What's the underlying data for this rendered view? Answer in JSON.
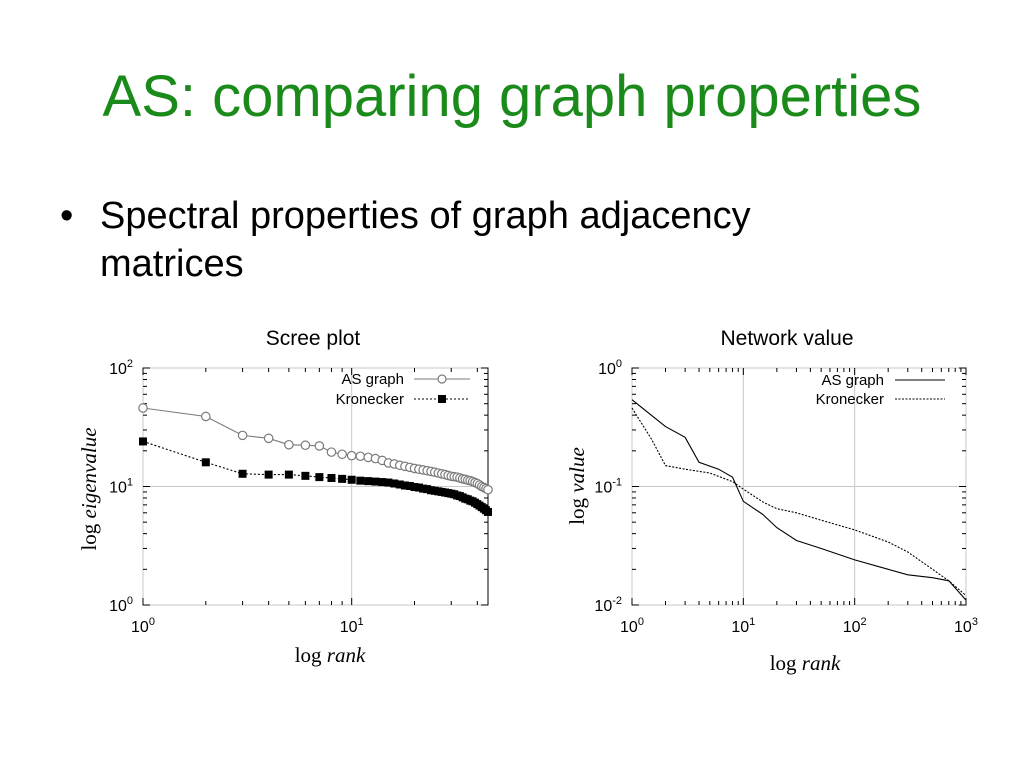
{
  "slide": {
    "title": "AS: comparing graph properties",
    "bullet": "•",
    "bullet_text": "Spectral properties of graph adjacency matrices"
  },
  "chart_data": [
    {
      "type": "line",
      "title": "Scree plot",
      "xlabel_prefix": "log ",
      "xlabel_main": "rank",
      "ylabel_prefix": "log ",
      "ylabel_main": "eigenvalue",
      "xscale": "log",
      "yscale": "log",
      "xlim": [
        1,
        45
      ],
      "ylim": [
        1,
        100
      ],
      "x_ticks": [
        {
          "base": "10",
          "exp": "0"
        },
        {
          "base": "10",
          "exp": "1"
        }
      ],
      "y_ticks": [
        {
          "base": "10",
          "exp": "0"
        },
        {
          "base": "10",
          "exp": "1"
        },
        {
          "base": "10",
          "exp": "2"
        }
      ],
      "legend_position": "top-right",
      "series": [
        {
          "name": "AS graph",
          "color": "#7a7a7a",
          "marker": "open-circle",
          "line": "solid",
          "x": [
            1,
            2,
            3,
            4,
            5,
            6,
            7,
            8,
            9,
            10,
            11,
            12,
            13,
            14,
            15,
            16,
            17,
            18,
            19,
            20,
            21,
            22,
            23,
            24,
            25,
            26,
            27,
            28,
            29,
            30,
            31,
            32,
            33,
            34,
            35,
            36,
            37,
            38,
            39,
            40,
            41,
            42,
            43,
            44,
            45
          ],
          "y": [
            46,
            39,
            27,
            25.5,
            22.5,
            22.3,
            22,
            19.5,
            18.7,
            18.2,
            18,
            17.6,
            17.2,
            16.6,
            15.8,
            15.5,
            15.1,
            14.8,
            14.5,
            14.2,
            14,
            13.8,
            13.6,
            13.4,
            13.2,
            13,
            12.8,
            12.6,
            12.4,
            12.2,
            12.1,
            12,
            11.8,
            11.6,
            11.5,
            11.3,
            11.2,
            11,
            10.8,
            10.6,
            10.3,
            10,
            9.8,
            9.6,
            9.4
          ]
        },
        {
          "name": "Kronecker",
          "color": "#000000",
          "marker": "filled-square",
          "line": "dotted",
          "x": [
            1,
            2,
            3,
            4,
            5,
            6,
            7,
            8,
            9,
            10,
            11,
            12,
            13,
            14,
            15,
            16,
            17,
            18,
            19,
            20,
            21,
            22,
            23,
            24,
            25,
            26,
            27,
            28,
            29,
            30,
            31,
            32,
            33,
            34,
            35,
            36,
            37,
            38,
            39,
            40,
            41,
            42,
            43,
            44,
            45
          ],
          "y": [
            24,
            16,
            12.8,
            12.6,
            12.6,
            12.3,
            12,
            11.8,
            11.6,
            11.4,
            11.2,
            11.1,
            11,
            10.9,
            10.8,
            10.6,
            10.4,
            10.2,
            10.1,
            9.9,
            9.8,
            9.6,
            9.5,
            9.3,
            9.2,
            9.1,
            9,
            8.9,
            8.8,
            8.7,
            8.6,
            8.4,
            8.3,
            8.1,
            7.9,
            7.8,
            7.6,
            7.5,
            7.3,
            7.1,
            6.9,
            6.7,
            6.5,
            6.3,
            6.1
          ]
        }
      ]
    },
    {
      "type": "line",
      "title": "Network value",
      "xlabel_prefix": "log ",
      "xlabel_main": "rank",
      "ylabel_prefix": "log ",
      "ylabel_main": "value",
      "xscale": "log",
      "yscale": "log",
      "xlim": [
        1,
        1000
      ],
      "ylim": [
        0.01,
        1
      ],
      "x_ticks": [
        {
          "base": "10",
          "exp": "0"
        },
        {
          "base": "10",
          "exp": "1"
        },
        {
          "base": "10",
          "exp": "2"
        },
        {
          "base": "10",
          "exp": "3"
        }
      ],
      "y_ticks": [
        {
          "base": "10",
          "exp": "-2"
        },
        {
          "base": "10",
          "exp": "-1"
        },
        {
          "base": "10",
          "exp": "0"
        }
      ],
      "legend_position": "top-right",
      "series": [
        {
          "name": "AS graph",
          "color": "#000000",
          "line": "solid",
          "x": [
            1,
            2,
            3,
            4,
            6,
            8,
            10,
            15,
            20,
            30,
            50,
            100,
            200,
            300,
            500,
            700,
            1000
          ],
          "y": [
            0.54,
            0.32,
            0.26,
            0.16,
            0.14,
            0.12,
            0.075,
            0.058,
            0.045,
            0.035,
            0.03,
            0.024,
            0.02,
            0.018,
            0.017,
            0.016,
            0.011
          ]
        },
        {
          "name": "Kronecker",
          "color": "#000000",
          "line": "dashed",
          "x": [
            1,
            1.5,
            2,
            3,
            5,
            8,
            10,
            15,
            20,
            30,
            50,
            100,
            200,
            300,
            500,
            700,
            1000
          ],
          "y": [
            0.46,
            0.25,
            0.15,
            0.14,
            0.13,
            0.11,
            0.095,
            0.074,
            0.065,
            0.06,
            0.052,
            0.043,
            0.034,
            0.028,
            0.02,
            0.016,
            0.012
          ]
        }
      ]
    }
  ]
}
